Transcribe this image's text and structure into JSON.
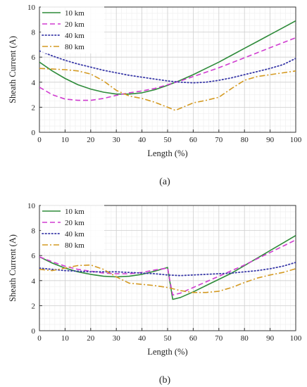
{
  "chart_data": [
    {
      "type": "line",
      "caption": "(a)",
      "xlabel": "Length (%)",
      "ylabel": "Sheath Current (A)",
      "xlim": [
        0,
        100
      ],
      "ylim": [
        0,
        10
      ],
      "xticks": [
        0,
        10,
        20,
        30,
        40,
        50,
        60,
        70,
        80,
        90,
        100
      ],
      "yticks": [
        0,
        2,
        4,
        6,
        8,
        10
      ],
      "grid": true,
      "legend_position": "top-left",
      "series": [
        {
          "name": "10 km",
          "color": "#2e8b3a",
          "style": "solid",
          "x": [
            0,
            5,
            10,
            15,
            20,
            25,
            30,
            35,
            40,
            45,
            50,
            55,
            60,
            65,
            70,
            75,
            80,
            85,
            90,
            95,
            100
          ],
          "y": [
            5.6,
            4.9,
            4.3,
            3.8,
            3.45,
            3.2,
            3.05,
            3.05,
            3.15,
            3.4,
            3.75,
            4.15,
            4.6,
            5.1,
            5.6,
            6.15,
            6.7,
            7.25,
            7.8,
            8.35,
            8.9
          ]
        },
        {
          "name": "20 km",
          "color": "#d03cd0",
          "style": "dashed",
          "x": [
            0,
            5,
            10,
            15,
            20,
            25,
            30,
            35,
            40,
            45,
            50,
            55,
            60,
            65,
            70,
            75,
            80,
            85,
            90,
            95,
            100
          ],
          "y": [
            3.6,
            3.0,
            2.65,
            2.55,
            2.55,
            2.7,
            2.95,
            3.15,
            3.3,
            3.5,
            3.8,
            4.1,
            4.45,
            4.8,
            5.15,
            5.55,
            5.95,
            6.35,
            6.75,
            7.15,
            7.55
          ]
        },
        {
          "name": "40 km",
          "color": "#3a3aa8",
          "style": "dotted",
          "x": [
            0,
            5,
            10,
            15,
            20,
            25,
            30,
            35,
            40,
            45,
            50,
            55,
            60,
            65,
            70,
            75,
            80,
            85,
            90,
            95,
            100
          ],
          "y": [
            6.5,
            6.1,
            5.75,
            5.45,
            5.2,
            4.95,
            4.75,
            4.55,
            4.4,
            4.25,
            4.1,
            4.0,
            3.95,
            4.0,
            4.15,
            4.35,
            4.6,
            4.85,
            5.1,
            5.4,
            5.9
          ]
        },
        {
          "name": "80 km",
          "color": "#d49a22",
          "style": "dashdot",
          "x": [
            0,
            5,
            10,
            15,
            20,
            25,
            30,
            35,
            40,
            45,
            50,
            53,
            56,
            60,
            65,
            70,
            75,
            80,
            85,
            90,
            95,
            100
          ],
          "y": [
            5.1,
            5.05,
            5.0,
            4.9,
            4.65,
            4.1,
            3.35,
            2.9,
            2.7,
            2.4,
            2.0,
            1.75,
            2.0,
            2.35,
            2.55,
            2.8,
            3.5,
            4.15,
            4.45,
            4.6,
            4.75,
            4.9
          ]
        }
      ]
    },
    {
      "type": "line",
      "caption": "(b)",
      "xlabel": "Length (%)",
      "ylabel": "Sheath Current (A)",
      "xlim": [
        0,
        100
      ],
      "ylim": [
        0,
        10
      ],
      "xticks": [
        0,
        10,
        20,
        30,
        40,
        50,
        60,
        70,
        80,
        90,
        100
      ],
      "yticks": [
        0,
        2,
        4,
        6,
        8,
        10
      ],
      "grid": true,
      "legend_position": "top-left",
      "series": [
        {
          "name": "10 km",
          "color": "#2e8b3a",
          "style": "solid",
          "x": [
            0,
            5,
            10,
            15,
            20,
            25,
            30,
            35,
            40,
            45,
            50,
            51,
            52,
            55,
            60,
            65,
            70,
            75,
            80,
            85,
            90,
            95,
            100
          ],
          "y": [
            5.9,
            5.4,
            5.0,
            4.7,
            4.5,
            4.35,
            4.3,
            4.35,
            4.5,
            4.75,
            5.05,
            3.8,
            2.5,
            2.65,
            3.1,
            3.6,
            4.1,
            4.6,
            5.2,
            5.8,
            6.4,
            7.0,
            7.6
          ]
        },
        {
          "name": "20 km",
          "color": "#d03cd0",
          "style": "dashed",
          "x": [
            0,
            5,
            10,
            15,
            20,
            25,
            30,
            35,
            40,
            45,
            50,
            51,
            52,
            55,
            60,
            65,
            70,
            75,
            80,
            85,
            90,
            95,
            100
          ],
          "y": [
            5.9,
            5.5,
            5.15,
            4.9,
            4.75,
            4.6,
            4.55,
            4.55,
            4.65,
            4.85,
            5.0,
            3.9,
            2.85,
            3.0,
            3.45,
            3.9,
            4.35,
            4.8,
            5.25,
            5.75,
            6.25,
            6.75,
            7.25
          ]
        },
        {
          "name": "40 km",
          "color": "#3a3aa8",
          "style": "dotted",
          "x": [
            0,
            5,
            10,
            15,
            20,
            25,
            30,
            35,
            40,
            45,
            50,
            55,
            60,
            65,
            70,
            75,
            80,
            85,
            90,
            95,
            100
          ],
          "y": [
            5.0,
            4.9,
            4.8,
            4.75,
            4.7,
            4.7,
            4.7,
            4.65,
            4.6,
            4.55,
            4.45,
            4.4,
            4.45,
            4.5,
            4.55,
            4.6,
            4.7,
            4.8,
            4.95,
            5.15,
            5.45
          ]
        },
        {
          "name": "80 km",
          "color": "#d49a22",
          "style": "dashdot",
          "x": [
            0,
            5,
            10,
            15,
            20,
            25,
            30,
            35,
            40,
            45,
            50,
            55,
            60,
            65,
            70,
            75,
            80,
            85,
            90,
            95,
            100
          ],
          "y": [
            4.9,
            4.8,
            5.0,
            5.2,
            5.25,
            4.9,
            4.3,
            3.8,
            3.7,
            3.6,
            3.45,
            3.2,
            3.05,
            3.05,
            3.15,
            3.45,
            3.85,
            4.2,
            4.45,
            4.65,
            4.95
          ]
        }
      ]
    }
  ]
}
